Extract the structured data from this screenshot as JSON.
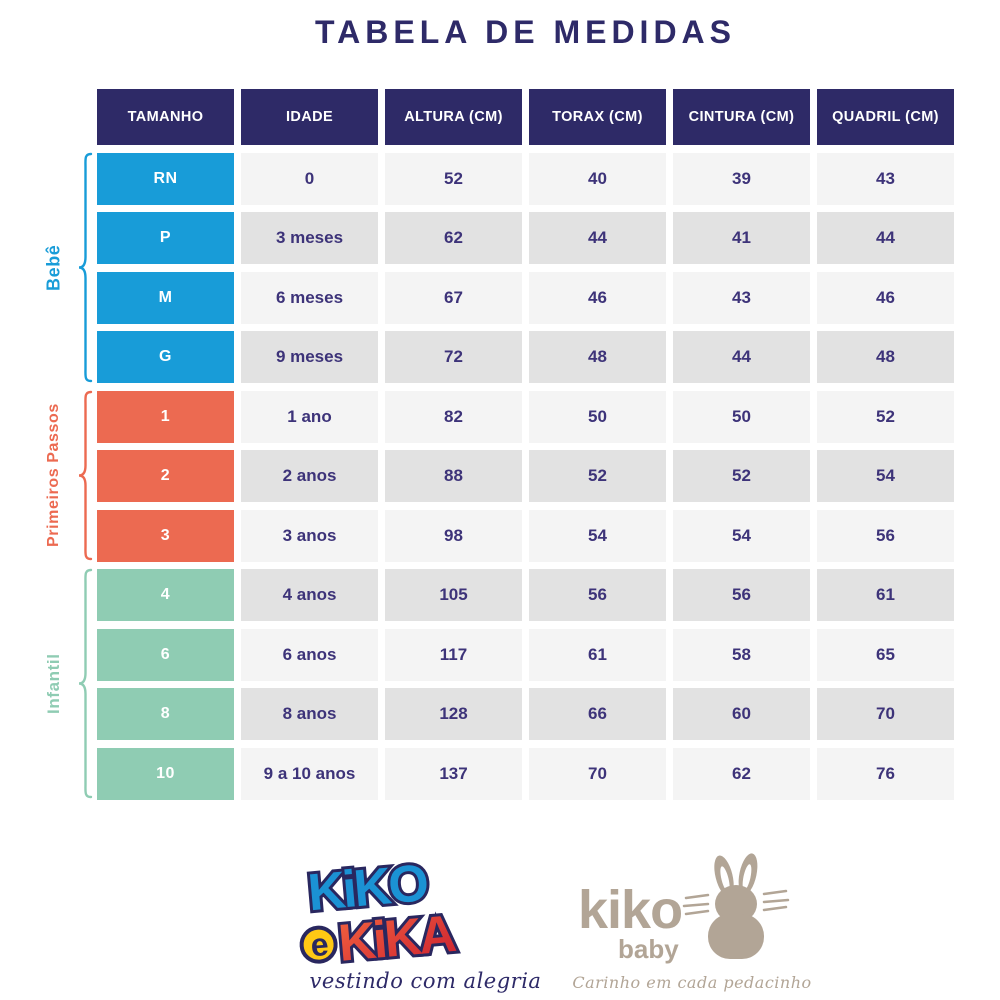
{
  "title": "TABELA DE MEDIDAS",
  "colors": {
    "header_navy": "#2e2a67",
    "cell_text_purple": "#3d3379",
    "bebe_blue": "#189cd8",
    "primeiros_passos_coral": "#ec6a51",
    "infantil_mint": "#8fccb3",
    "row_light": "#f4f4f4",
    "row_dark": "#e2e2e2",
    "kiko_baby_taupe": "#b2a596"
  },
  "table": {
    "headers": [
      "TAMANHO",
      "IDADE",
      "ALTURA (CM)",
      "TORAX (CM)",
      "CINTURA (CM)",
      "QUADRIL (CM)"
    ],
    "rows": [
      {
        "group": "bebe",
        "size": "RN",
        "idade": "0",
        "altura": "52",
        "torax": "40",
        "cintura": "39",
        "quadril": "43"
      },
      {
        "group": "bebe",
        "size": "P",
        "idade": "3 meses",
        "altura": "62",
        "torax": "44",
        "cintura": "41",
        "quadril": "44"
      },
      {
        "group": "bebe",
        "size": "M",
        "idade": "6 meses",
        "altura": "67",
        "torax": "46",
        "cintura": "43",
        "quadril": "46"
      },
      {
        "group": "bebe",
        "size": "G",
        "idade": "9 meses",
        "altura": "72",
        "torax": "48",
        "cintura": "44",
        "quadril": "48"
      },
      {
        "group": "primeiros-passos",
        "size": "1",
        "idade": "1 ano",
        "altura": "82",
        "torax": "50",
        "cintura": "50",
        "quadril": "52"
      },
      {
        "group": "primeiros-passos",
        "size": "2",
        "idade": "2 anos",
        "altura": "88",
        "torax": "52",
        "cintura": "52",
        "quadril": "54"
      },
      {
        "group": "primeiros-passos",
        "size": "3",
        "idade": "3 anos",
        "altura": "98",
        "torax": "54",
        "cintura": "54",
        "quadril": "56"
      },
      {
        "group": "infantil",
        "size": "4",
        "idade": "4 anos",
        "altura": "105",
        "torax": "56",
        "cintura": "56",
        "quadril": "61"
      },
      {
        "group": "infantil",
        "size": "6",
        "idade": "6 anos",
        "altura": "117",
        "torax": "61",
        "cintura": "58",
        "quadril": "65"
      },
      {
        "group": "infantil",
        "size": "8",
        "idade": "8 anos",
        "altura": "128",
        "torax": "66",
        "cintura": "60",
        "quadril": "70"
      },
      {
        "group": "infantil",
        "size": "10",
        "idade": "9 a 10 anos",
        "altura": "137",
        "torax": "70",
        "cintura": "62",
        "quadril": "76"
      }
    ]
  },
  "groups": [
    {
      "id": "bebe",
      "label": "Bebê",
      "color": "#189cd8"
    },
    {
      "id": "primeiros-passos",
      "label": "Primeiros Passos",
      "color": "#ec6a51"
    },
    {
      "id": "infantil",
      "label": "Infantil",
      "color": "#8fccb3"
    }
  ],
  "logos": {
    "kiko_e_kika": {
      "word1": "KiKO",
      "word2_e": "e",
      "word2": "KiKA",
      "tagline": "vestindo com alegria"
    },
    "kiko_baby": {
      "name": "kiko",
      "sub": "baby",
      "tagline": "Carinho em cada pedacinho"
    }
  }
}
